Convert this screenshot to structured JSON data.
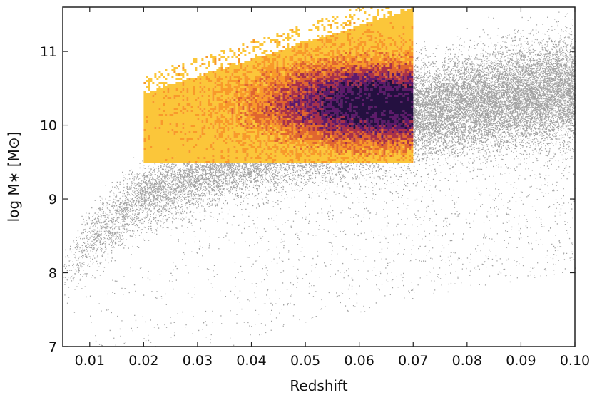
{
  "chart_data": {
    "type": "scatter",
    "title": "",
    "xlabel": "Redshift",
    "ylabel": "log M∗ [M⊙]",
    "xlim": [
      0.005,
      0.1
    ],
    "ylim": [
      7.0,
      11.6
    ],
    "xticks": [
      0.01,
      0.02,
      0.03,
      0.04,
      0.05,
      0.06,
      0.07,
      0.08,
      0.09,
      0.1
    ],
    "xtick_labels": [
      "0.01",
      "0.02",
      "0.03",
      "0.04",
      "0.05",
      "0.06",
      "0.07",
      "0.08",
      "0.09",
      "0.10"
    ],
    "yticks": [
      7,
      8,
      9,
      10,
      11
    ],
    "ytick_labels": [
      "7",
      "8",
      "9",
      "10",
      "11"
    ],
    "grid": false,
    "legend": "none",
    "series": [
      {
        "kind": "background-scatter",
        "color": "#555555",
        "ridge": {
          "x": [
            0.005,
            0.01,
            0.02,
            0.03,
            0.04,
            0.05,
            0.06,
            0.07,
            0.08,
            0.09,
            0.1
          ],
          "y": [
            7.9,
            8.45,
            9.05,
            9.35,
            9.6,
            9.8,
            9.95,
            10.15,
            10.3,
            10.4,
            10.5
          ]
        }
      },
      {
        "kind": "highlighted-density-box",
        "colormap": [
          "#fbc63a",
          "#f89a2a",
          "#e0662f",
          "#a8314a",
          "#5e1a6b",
          "#241040"
        ],
        "x_range": [
          0.02,
          0.07
        ],
        "y_range": [
          9.5,
          11.6
        ],
        "density_peak": {
          "x": 0.064,
          "y": 10.3
        }
      }
    ]
  }
}
